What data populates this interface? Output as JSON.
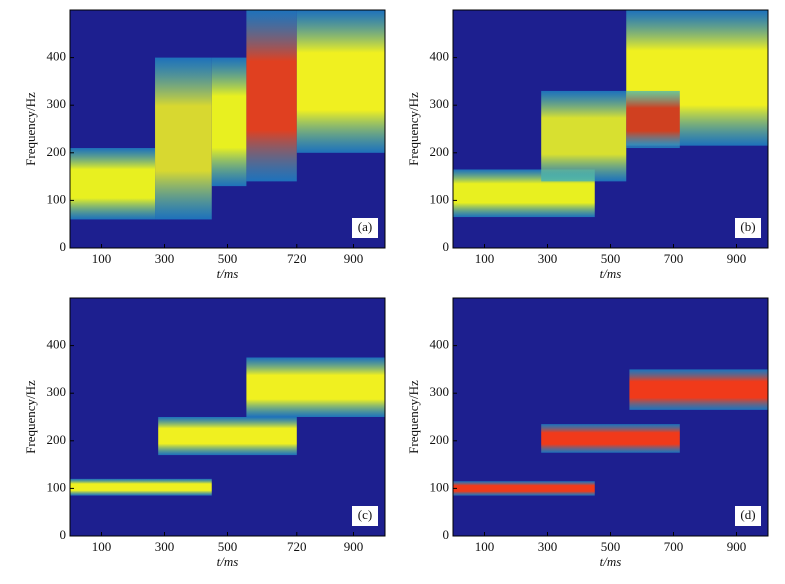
{
  "chart_data": [
    {
      "type": "spectrogram",
      "panel": "(a)",
      "xlabel": "t/ms",
      "ylabel": "Frequency/Hz",
      "xlim": [
        0,
        1000
      ],
      "ylim": [
        0,
        500
      ],
      "xticks": [
        100,
        300,
        500,
        720,
        900
      ],
      "yticks": [
        0,
        100,
        200,
        300,
        400
      ],
      "background": "#1d1f8f",
      "bands": [
        {
          "t": [
            0,
            270
          ],
          "f": [
            60,
            210
          ],
          "color": "#e8f020"
        },
        {
          "t": [
            270,
            450
          ],
          "f": [
            60,
            400
          ],
          "color": "#d8d830"
        },
        {
          "t": [
            450,
            560
          ],
          "f": [
            130,
            400
          ],
          "color": "#e8f020"
        },
        {
          "t": [
            560,
            720
          ],
          "f": [
            140,
            500
          ],
          "color": "#e04020"
        },
        {
          "t": [
            720,
            1000
          ],
          "f": [
            200,
            500
          ],
          "color": "#f0f020"
        }
      ]
    },
    {
      "type": "spectrogram",
      "panel": "(b)",
      "xlabel": "t/ms",
      "ylabel": "Frequency/Hz",
      "xlim": [
        0,
        1000
      ],
      "ylim": [
        0,
        500
      ],
      "xticks": [
        100,
        300,
        500,
        700,
        900
      ],
      "yticks": [
        0,
        100,
        200,
        300,
        400
      ],
      "background": "#1d1f8f",
      "bands": [
        {
          "t": [
            0,
            450
          ],
          "f": [
            65,
            165
          ],
          "color": "#e8f020"
        },
        {
          "t": [
            280,
            550
          ],
          "f": [
            140,
            330
          ],
          "color": "#d8e030"
        },
        {
          "t": [
            550,
            1000
          ],
          "f": [
            215,
            500
          ],
          "color": "#f0f020"
        },
        {
          "t": [
            550,
            720
          ],
          "f": [
            210,
            330
          ],
          "color": "#d04020"
        }
      ]
    },
    {
      "type": "spectrogram",
      "panel": "(c)",
      "xlabel": "t/ms",
      "ylabel": "Frequency/Hz",
      "xlim": [
        0,
        1000
      ],
      "ylim": [
        0,
        500
      ],
      "xticks": [
        100,
        300,
        500,
        720,
        900
      ],
      "yticks": [
        0,
        100,
        200,
        300,
        400
      ],
      "background": "#1d1f8f",
      "bands": [
        {
          "t": [
            0,
            450
          ],
          "f": [
            85,
            120
          ],
          "color": "#f0f020"
        },
        {
          "t": [
            280,
            720
          ],
          "f": [
            170,
            250
          ],
          "color": "#f0f020"
        },
        {
          "t": [
            560,
            1000
          ],
          "f": [
            250,
            375
          ],
          "color": "#f0f020"
        }
      ]
    },
    {
      "type": "spectrogram",
      "panel": "(d)",
      "xlabel": "t/ms",
      "ylabel": "Frequency/Hz",
      "xlim": [
        0,
        1000
      ],
      "ylim": [
        0,
        500
      ],
      "xticks": [
        100,
        300,
        500,
        700,
        900
      ],
      "yticks": [
        0,
        100,
        200,
        300,
        400
      ],
      "background": "#1d1f8f",
      "bands": [
        {
          "t": [
            0,
            450
          ],
          "f": [
            85,
            115
          ],
          "color": "#f03a1a"
        },
        {
          "t": [
            280,
            720
          ],
          "f": [
            175,
            235
          ],
          "color": "#f03a1a"
        },
        {
          "t": [
            560,
            1000
          ],
          "f": [
            265,
            350
          ],
          "color": "#f03a1a"
        }
      ]
    }
  ]
}
